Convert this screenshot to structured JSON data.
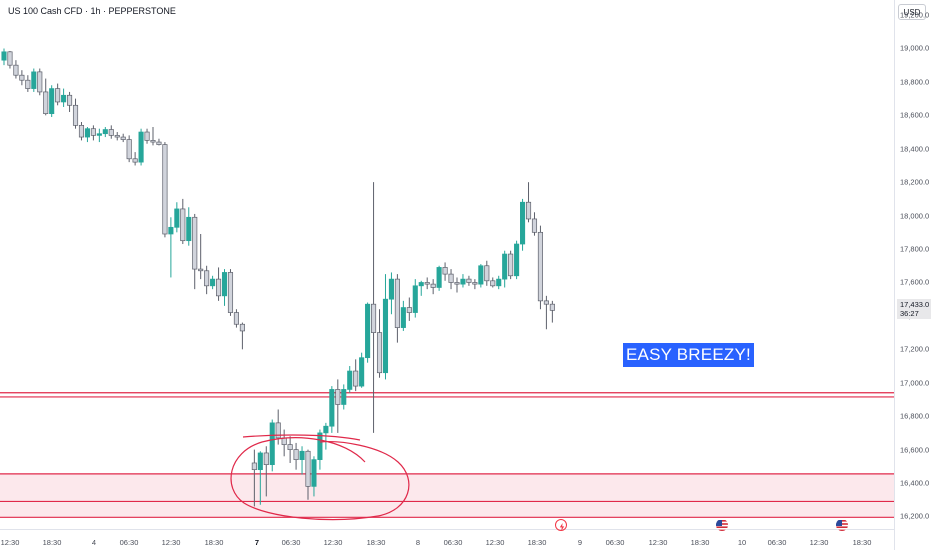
{
  "header": {
    "symbol_title": "US 100 Cash CFD · 1h · PEPPERSTONE"
  },
  "price_axis": {
    "currency": "USD",
    "last_price": "17,433.0",
    "countdown": "36:27"
  },
  "annotation_text": "EASY BREEZY!",
  "colors": {
    "up": "#26a69a",
    "down": "#d1d4dc",
    "outline": "#5d606b",
    "zone_line": "#e0294a",
    "zone_fill": "#fce8ec",
    "annotation_bg": "#2962ff"
  },
  "event_icons": [
    "lightning-icon",
    "us-flag-icon",
    "us-flag-icon"
  ],
  "chart_data": {
    "type": "candlestick",
    "title": "US 100 Cash CFD · 1h · PEPPERSTONE",
    "y_ticks": [
      "19,200.0",
      "19,000.0",
      "18,800.0",
      "18,600.0",
      "18,400.0",
      "18,200.0",
      "18,000.0",
      "17,800.0",
      "17,600.0",
      "17,400.0",
      "17,200.0",
      "17,000.0",
      "16,800.0",
      "16,600.0",
      "16,400.0",
      "16,200.0"
    ],
    "x_ticks": [
      {
        "label": "12:30",
        "bold": false
      },
      {
        "label": "18:30",
        "bold": false
      },
      {
        "label": "4",
        "bold": false
      },
      {
        "label": "06:30",
        "bold": false
      },
      {
        "label": "12:30",
        "bold": false
      },
      {
        "label": "18:30",
        "bold": false
      },
      {
        "label": "7",
        "bold": true
      },
      {
        "label": "06:30",
        "bold": false
      },
      {
        "label": "12:30",
        "bold": false
      },
      {
        "label": "18:30",
        "bold": false
      },
      {
        "label": "8",
        "bold": false
      },
      {
        "label": "06:30",
        "bold": false
      },
      {
        "label": "12:30",
        "bold": false
      },
      {
        "label": "18:30",
        "bold": false
      },
      {
        "label": "9",
        "bold": false
      },
      {
        "label": "06:30",
        "bold": false
      },
      {
        "label": "12:30",
        "bold": false
      },
      {
        "label": "18:30",
        "bold": false
      },
      {
        "label": "10",
        "bold": false
      },
      {
        "label": "06:30",
        "bold": false
      },
      {
        "label": "12:30",
        "bold": false
      },
      {
        "label": "18:30",
        "bold": false
      }
    ],
    "ylim": [
      16125,
      19290
    ],
    "horizontal_levels": [
      16940,
      16915,
      16455,
      16290,
      16195
    ],
    "zone": [
      16195,
      16455
    ],
    "candles": [
      {
        "o": 18930,
        "h": 19000,
        "l": 18900,
        "c": 18980
      },
      {
        "o": 18980,
        "h": 18985,
        "l": 18880,
        "c": 18900
      },
      {
        "o": 18900,
        "h": 18930,
        "l": 18820,
        "c": 18840
      },
      {
        "o": 18840,
        "h": 18870,
        "l": 18780,
        "c": 18810
      },
      {
        "o": 18810,
        "h": 18840,
        "l": 18740,
        "c": 18760
      },
      {
        "o": 18760,
        "h": 18880,
        "l": 18740,
        "c": 18860
      },
      {
        "o": 18860,
        "h": 18880,
        "l": 18720,
        "c": 18740
      },
      {
        "o": 18740,
        "h": 18820,
        "l": 18600,
        "c": 18610
      },
      {
        "o": 18610,
        "h": 18780,
        "l": 18590,
        "c": 18760
      },
      {
        "o": 18760,
        "h": 18790,
        "l": 18660,
        "c": 18680
      },
      {
        "o": 18680,
        "h": 18760,
        "l": 18650,
        "c": 18720
      },
      {
        "o": 18720,
        "h": 18740,
        "l": 18620,
        "c": 18660
      },
      {
        "o": 18660,
        "h": 18700,
        "l": 18520,
        "c": 18540
      },
      {
        "o": 18540,
        "h": 18560,
        "l": 18450,
        "c": 18470
      },
      {
        "o": 18470,
        "h": 18530,
        "l": 18440,
        "c": 18520
      },
      {
        "o": 18520,
        "h": 18540,
        "l": 18450,
        "c": 18480
      },
      {
        "o": 18480,
        "h": 18520,
        "l": 18440,
        "c": 18490
      },
      {
        "o": 18490,
        "h": 18530,
        "l": 18470,
        "c": 18515
      },
      {
        "o": 18515,
        "h": 18540,
        "l": 18460,
        "c": 18480
      },
      {
        "o": 18480,
        "h": 18500,
        "l": 18450,
        "c": 18470
      },
      {
        "o": 18470,
        "h": 18490,
        "l": 18440,
        "c": 18455
      },
      {
        "o": 18455,
        "h": 18480,
        "l": 18320,
        "c": 18340
      },
      {
        "o": 18340,
        "h": 18380,
        "l": 18300,
        "c": 18320
      },
      {
        "o": 18320,
        "h": 18520,
        "l": 18300,
        "c": 18500
      },
      {
        "o": 18500,
        "h": 18520,
        "l": 18430,
        "c": 18450
      },
      {
        "o": 18450,
        "h": 18530,
        "l": 18420,
        "c": 18440
      },
      {
        "o": 18440,
        "h": 18460,
        "l": 18420,
        "c": 18425
      },
      {
        "o": 18425,
        "h": 18440,
        "l": 17870,
        "c": 17890
      },
      {
        "o": 17890,
        "h": 17990,
        "l": 17630,
        "c": 17930
      },
      {
        "o": 17930,
        "h": 18080,
        "l": 17900,
        "c": 18040
      },
      {
        "o": 18040,
        "h": 18100,
        "l": 17830,
        "c": 17850
      },
      {
        "o": 17850,
        "h": 18050,
        "l": 17820,
        "c": 17990
      },
      {
        "o": 17990,
        "h": 18010,
        "l": 17560,
        "c": 17680
      },
      {
        "o": 17680,
        "h": 17890,
        "l": 17620,
        "c": 17670
      },
      {
        "o": 17670,
        "h": 17700,
        "l": 17530,
        "c": 17580
      },
      {
        "o": 17580,
        "h": 17640,
        "l": 17560,
        "c": 17620
      },
      {
        "o": 17620,
        "h": 17690,
        "l": 17490,
        "c": 17520
      },
      {
        "o": 17520,
        "h": 17680,
        "l": 17460,
        "c": 17660
      },
      {
        "o": 17660,
        "h": 17680,
        "l": 17400,
        "c": 17420
      },
      {
        "o": 17420,
        "h": 17440,
        "l": 17330,
        "c": 17350
      },
      {
        "o": 17350,
        "h": 17360,
        "l": 17200,
        "c": 17310
      },
      {
        "o": 16520,
        "h": 16600,
        "l": 16260,
        "c": 16480
      },
      {
        "o": 16480,
        "h": 16590,
        "l": 16270,
        "c": 16580
      },
      {
        "o": 16580,
        "h": 16620,
        "l": 16320,
        "c": 16510
      },
      {
        "o": 16510,
        "h": 16780,
        "l": 16470,
        "c": 16760
      },
      {
        "o": 16760,
        "h": 16840,
        "l": 16630,
        "c": 16670
      },
      {
        "o": 16670,
        "h": 16720,
        "l": 16560,
        "c": 16630
      },
      {
        "o": 16630,
        "h": 16680,
        "l": 16520,
        "c": 16600
      },
      {
        "o": 16600,
        "h": 16640,
        "l": 16480,
        "c": 16540
      },
      {
        "o": 16540,
        "h": 16620,
        "l": 16450,
        "c": 16590
      },
      {
        "o": 16590,
        "h": 16600,
        "l": 16300,
        "c": 16380
      },
      {
        "o": 16380,
        "h": 16560,
        "l": 16320,
        "c": 16540
      },
      {
        "o": 16540,
        "h": 16720,
        "l": 16480,
        "c": 16700
      },
      {
        "o": 16700,
        "h": 16760,
        "l": 16600,
        "c": 16740
      },
      {
        "o": 16740,
        "h": 16980,
        "l": 16700,
        "c": 16960
      },
      {
        "o": 16960,
        "h": 17020,
        "l": 16700,
        "c": 16870
      },
      {
        "o": 16870,
        "h": 16990,
        "l": 16840,
        "c": 16960
      },
      {
        "o": 16960,
        "h": 17100,
        "l": 16940,
        "c": 17070
      },
      {
        "o": 17070,
        "h": 17140,
        "l": 16950,
        "c": 16980
      },
      {
        "o": 16980,
        "h": 17180,
        "l": 16970,
        "c": 17150
      },
      {
        "o": 17150,
        "h": 17480,
        "l": 17120,
        "c": 17470
      },
      {
        "o": 17470,
        "h": 18200,
        "l": 16700,
        "c": 17300
      },
      {
        "o": 17300,
        "h": 17440,
        "l": 17030,
        "c": 17060
      },
      {
        "o": 17060,
        "h": 17650,
        "l": 17020,
        "c": 17500
      },
      {
        "o": 17500,
        "h": 17660,
        "l": 17410,
        "c": 17620
      },
      {
        "o": 17620,
        "h": 17650,
        "l": 17240,
        "c": 17330
      },
      {
        "o": 17330,
        "h": 17490,
        "l": 17310,
        "c": 17450
      },
      {
        "o": 17450,
        "h": 17510,
        "l": 17370,
        "c": 17420
      },
      {
        "o": 17420,
        "h": 17620,
        "l": 17390,
        "c": 17580
      },
      {
        "o": 17580,
        "h": 17610,
        "l": 17520,
        "c": 17600
      },
      {
        "o": 17600,
        "h": 17630,
        "l": 17560,
        "c": 17590
      },
      {
        "o": 17590,
        "h": 17620,
        "l": 17530,
        "c": 17570
      },
      {
        "o": 17570,
        "h": 17700,
        "l": 17550,
        "c": 17690
      },
      {
        "o": 17690,
        "h": 17720,
        "l": 17610,
        "c": 17650
      },
      {
        "o": 17650,
        "h": 17680,
        "l": 17560,
        "c": 17600
      },
      {
        "o": 17600,
        "h": 17630,
        "l": 17540,
        "c": 17590
      },
      {
        "o": 17590,
        "h": 17650,
        "l": 17570,
        "c": 17620
      },
      {
        "o": 17620,
        "h": 17640,
        "l": 17580,
        "c": 17600
      },
      {
        "o": 17600,
        "h": 17620,
        "l": 17560,
        "c": 17590
      },
      {
        "o": 17590,
        "h": 17710,
        "l": 17570,
        "c": 17700
      },
      {
        "o": 17700,
        "h": 17730,
        "l": 17580,
        "c": 17610
      },
      {
        "o": 17610,
        "h": 17630,
        "l": 17570,
        "c": 17580
      },
      {
        "o": 17580,
        "h": 17640,
        "l": 17560,
        "c": 17620
      },
      {
        "o": 17620,
        "h": 17790,
        "l": 17570,
        "c": 17770
      },
      {
        "o": 17770,
        "h": 17790,
        "l": 17620,
        "c": 17640
      },
      {
        "o": 17640,
        "h": 17850,
        "l": 17620,
        "c": 17830
      },
      {
        "o": 17830,
        "h": 18100,
        "l": 17790,
        "c": 18080
      },
      {
        "o": 18080,
        "h": 18200,
        "l": 17960,
        "c": 17980
      },
      {
        "o": 17980,
        "h": 18020,
        "l": 17880,
        "c": 17900
      },
      {
        "o": 17900,
        "h": 17940,
        "l": 17440,
        "c": 17490
      },
      {
        "o": 17490,
        "h": 17520,
        "l": 17320,
        "c": 17470
      },
      {
        "o": 17470,
        "h": 17490,
        "l": 17360,
        "c": 17433
      }
    ]
  }
}
